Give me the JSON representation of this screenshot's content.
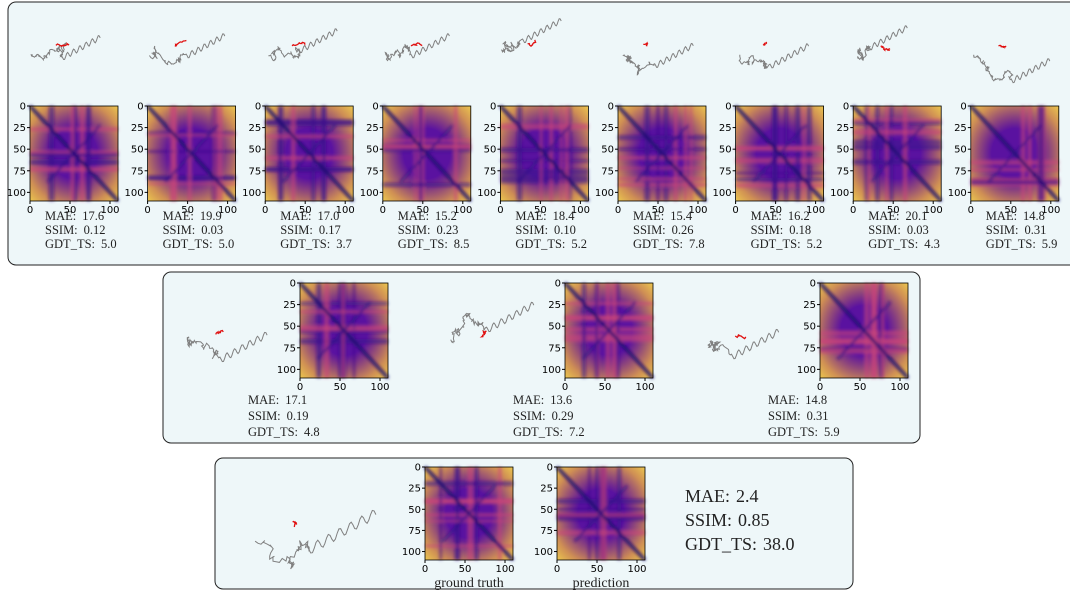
{
  "labels": {
    "mae": "MAE:",
    "ssim": "SSIM:",
    "gdt": "GDT_TS:"
  },
  "yticks": [
    0,
    25,
    50,
    75,
    100
  ],
  "xticks": [
    0,
    50,
    100
  ],
  "top_row": [
    {
      "mae": "17.6",
      "ssim": "0.12",
      "gdt": "5.0"
    },
    {
      "mae": "19.9",
      "ssim": "0.03",
      "gdt": "5.0"
    },
    {
      "mae": "17.0",
      "ssim": "0.17",
      "gdt": "3.7"
    },
    {
      "mae": "15.2",
      "ssim": "0.23",
      "gdt": "8.5"
    },
    {
      "mae": "18.4",
      "ssim": "0.10",
      "gdt": "5.2"
    },
    {
      "mae": "15.4",
      "ssim": "0.26",
      "gdt": "7.8"
    },
    {
      "mae": "16.2",
      "ssim": "0.18",
      "gdt": "5.2"
    },
    {
      "mae": "20.1",
      "ssim": "0.03",
      "gdt": "4.3"
    },
    {
      "mae": "14.8",
      "ssim": "0.31",
      "gdt": "5.9"
    }
  ],
  "middle_row": [
    {
      "mae": "17.1",
      "ssim": "0.19",
      "gdt": "4.8"
    },
    {
      "mae": "13.6",
      "ssim": "0.29",
      "gdt": "7.2"
    },
    {
      "mae": "14.8",
      "ssim": "0.31",
      "gdt": "5.9"
    }
  ],
  "bottom": {
    "mae": "2.4",
    "ssim": "0.85",
    "gdt": "38.0",
    "captions": [
      "ground truth",
      "prediction"
    ]
  }
}
